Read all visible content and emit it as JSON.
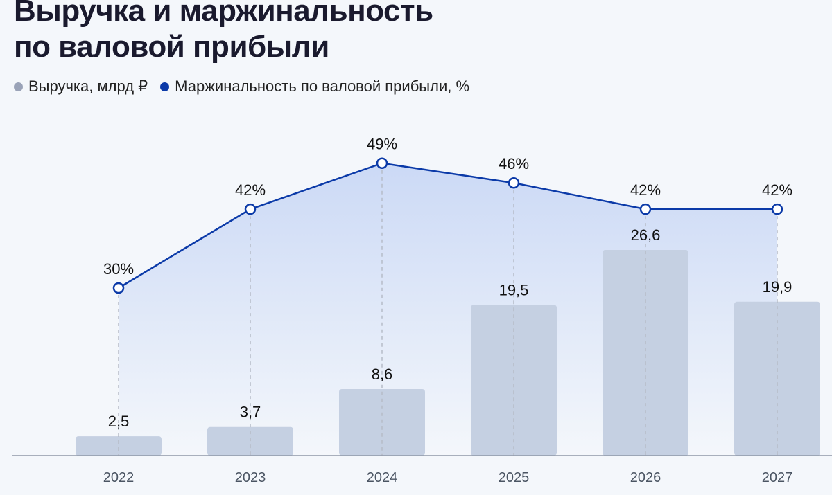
{
  "title_line1": "Выручка и маржинальность",
  "title_line2": "по валовой прибыли",
  "colors": {
    "bar": "#c5d0e2",
    "line": "#0b3aa8",
    "area_top": "#c7d6f5",
    "legend_bar_dot": "#9aa3b8",
    "legend_line_dot": "#0b3aa8",
    "axis": "#8f97a8",
    "dashed": "#b6bcc8"
  },
  "chart_data": {
    "type": "bar",
    "categories": [
      "2022",
      "2023",
      "2024",
      "2025",
      "2026",
      "2027"
    ],
    "series": [
      {
        "name": "Выручка, млрд ₽",
        "type": "bar",
        "values": [
          2.5,
          3.7,
          8.6,
          19.5,
          26.6,
          19.9
        ],
        "labels": [
          "2,5",
          "3,7",
          "8,6",
          "19,5",
          "26,6",
          "19,9"
        ]
      },
      {
        "name": "Маржинальность по валовой прибыли, %",
        "type": "line",
        "values": [
          30,
          42,
          49,
          46,
          42,
          42
        ],
        "labels": [
          "30%",
          "42%",
          "49%",
          "46%",
          "42%",
          "42%"
        ]
      }
    ],
    "legend_position": "top-left",
    "grid": false
  }
}
